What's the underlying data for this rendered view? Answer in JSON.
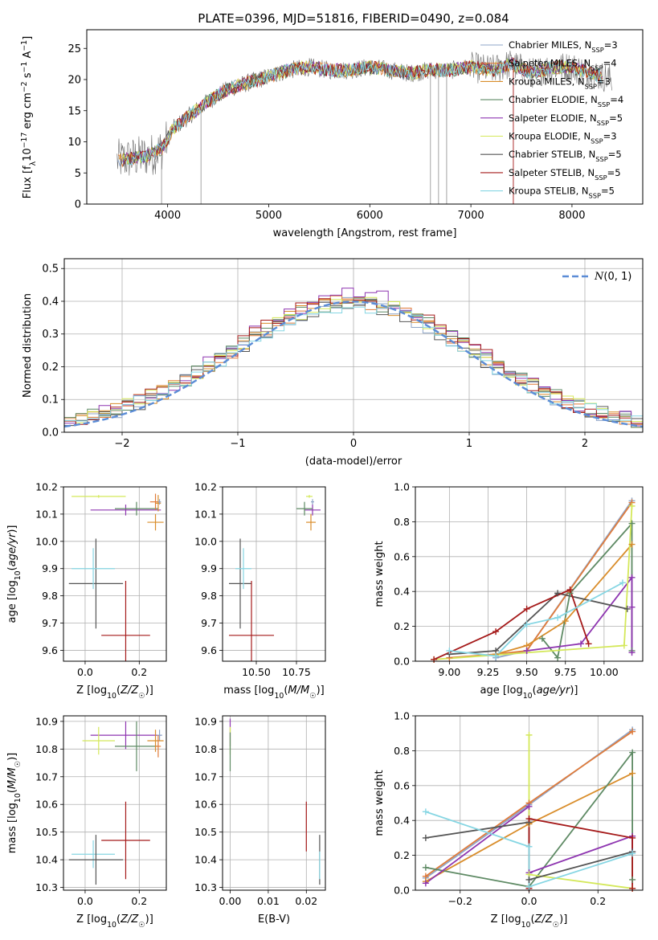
{
  "figure_title": "PLATE=0396, MJD=51816, FIBERID=0490, z=0.084",
  "colors": {
    "Chabrier MILES": "#8fa5c8",
    "Salpeter MILES": "#e07b3a",
    "Kroupa MILES": "#d98d2b",
    "Chabrier ELODIE": "#5e8a64",
    "Salpeter ELODIE": "#8e35b0",
    "Kroupa ELODIE": "#d4e85a",
    "Chabrier STELIB": "#555555",
    "Salpeter STELIB": "#a51a1a",
    "Kroupa STELIB": "#86d6e3",
    "gauss": "#5b8cd6"
  },
  "chart_data": [
    {
      "type": "line",
      "title": "PLATE=0396, MJD=51816, FIBERID=0490, z=0.084",
      "xlabel": "wavelength [Angstrom, rest frame]",
      "ylabel": "Flux [f_λ10⁻¹⁷ erg cm⁻² s⁻¹ A⁻¹]",
      "xlim": [
        3200,
        8700
      ],
      "ylim": [
        0,
        28
      ],
      "xticks": [
        4000,
        5000,
        6000,
        7000,
        8000
      ],
      "yticks": [
        0,
        5,
        10,
        15,
        20,
        25
      ],
      "grid": false,
      "legend_position": "top-right",
      "series_names": [
        "Chabrier MILES",
        "Salpeter MILES",
        "Kroupa MILES",
        "Chabrier ELODIE",
        "Salpeter ELODIE",
        "Kroupa ELODIE",
        "Chabrier STELIB",
        "Salpeter STELIB",
        "Kroupa STELIB"
      ],
      "legend": [
        {
          "name": "Chabrier MILES",
          "nssp": "3"
        },
        {
          "name": "Salpeter MILES",
          "nssp": "4"
        },
        {
          "name": "Kroupa MILES",
          "nssp": "3"
        },
        {
          "name": "Chabrier ELODIE",
          "nssp": "4"
        },
        {
          "name": "Salpeter ELODIE",
          "nssp": "5"
        },
        {
          "name": "Kroupa ELODIE",
          "nssp": "3"
        },
        {
          "name": "Chabrier STELIB",
          "nssp": "5"
        },
        {
          "name": "Salpeter STELIB",
          "nssp": "5"
        },
        {
          "name": "Kroupa STELIB",
          "nssp": "5"
        }
      ],
      "continuum": [
        [
          3500,
          7
        ],
        [
          3700,
          7.5
        ],
        [
          3850,
          8
        ],
        [
          3950,
          9
        ],
        [
          4050,
          12
        ],
        [
          4200,
          14
        ],
        [
          4400,
          16.5
        ],
        [
          4600,
          18.5
        ],
        [
          4800,
          19.5
        ],
        [
          5000,
          20.5
        ],
        [
          5200,
          21.5
        ],
        [
          5400,
          22
        ],
        [
          5600,
          21.5
        ],
        [
          5800,
          21.5
        ],
        [
          6000,
          22
        ],
        [
          6200,
          21.5
        ],
        [
          6400,
          21
        ],
        [
          6600,
          21.5
        ],
        [
          6800,
          21.5
        ],
        [
          7000,
          22
        ],
        [
          7200,
          21.5
        ],
        [
          7400,
          22.5
        ],
        [
          7600,
          21
        ],
        [
          7800,
          22
        ],
        [
          8000,
          22
        ],
        [
          8200,
          21
        ],
        [
          8400,
          20
        ]
      ]
    },
    {
      "type": "histogram",
      "xlabel": "(data-model)/error",
      "ylabel": "Normed distribution",
      "xlim": [
        -2.5,
        2.5
      ],
      "ylim": [
        0,
        0.53
      ],
      "xticks": [
        -2,
        -1,
        0,
        1,
        2
      ],
      "yticks": [
        0.0,
        0.1,
        0.2,
        0.3,
        0.4,
        0.5
      ],
      "grid": true,
      "legend": [
        "N(0,1)"
      ],
      "legend_position": "top-right",
      "series_names": [
        "Chabrier MILES",
        "Salpeter MILES",
        "Kroupa MILES",
        "Chabrier ELODIE",
        "Salpeter ELODIE",
        "Kroupa ELODIE",
        "Chabrier STELIB",
        "Salpeter STELIB",
        "Kroupa STELIB"
      ],
      "bin_width": 0.1,
      "approx_peak_values": [
        0.38,
        0.39,
        0.39,
        0.39,
        0.41,
        0.39,
        0.38,
        0.4,
        0.38
      ]
    },
    {
      "type": "scatter",
      "xlabel": "Z [log₁₀(Z/Z☉)]",
      "ylabel": "age  [log₁₀(age/yr)]",
      "xlim": [
        -0.08,
        0.3
      ],
      "ylim": [
        9.56,
        10.2
      ],
      "xticks": [
        0.0,
        0.2
      ],
      "yticks": [
        9.6,
        9.7,
        9.8,
        9.9,
        10.0,
        10.1,
        10.2
      ],
      "grid": true,
      "points": [
        {
          "series": "Kroupa ELODIE",
          "x": 0.05,
          "xerr": 0.1,
          "y": 10.165,
          "yerr": 0.005
        },
        {
          "series": "Salpeter ELODIE",
          "x": 0.15,
          "xerr": 0.13,
          "y": 10.115,
          "yerr": 0.02
        },
        {
          "series": "Chabrier ELODIE",
          "x": 0.19,
          "xerr": 0.08,
          "y": 10.12,
          "yerr": 0.025
        },
        {
          "series": "Salpeter MILES",
          "x": 0.26,
          "xerr": 0.02,
          "y": 10.145,
          "yerr": 0.03
        },
        {
          "series": "Kroupa MILES",
          "x": 0.27,
          "xerr": 0.01,
          "y": 10.14,
          "yerr": 0.03
        },
        {
          "series": "Chabrier MILES",
          "x": 0.275,
          "xerr": 0.005,
          "y": 10.145,
          "yerr": 0.01
        },
        {
          "series": "Kroupa MILES",
          "x": 0.26,
          "xerr": 0.03,
          "y": 10.07,
          "yerr": 0.03
        },
        {
          "series": "Chabrier STELIB",
          "x": 0.04,
          "xerr": 0.1,
          "y": 9.845,
          "yerr": 0.165
        },
        {
          "series": "Kroupa STELIB",
          "x": 0.03,
          "xerr": 0.08,
          "y": 9.9,
          "yerr": 0.075
        },
        {
          "series": "Salpeter STELIB",
          "x": 0.15,
          "xerr": 0.09,
          "y": 9.655,
          "yerr": 0.2
        }
      ]
    },
    {
      "type": "scatter",
      "xlabel": "mass [log₁₀(M/M☉)]",
      "xlim": [
        10.29,
        10.93
      ],
      "ylim": [
        9.56,
        10.2
      ],
      "xticks": [
        10.5,
        10.75
      ],
      "yticks": [
        9.6,
        9.7,
        9.8,
        9.9,
        10.0,
        10.1,
        10.2
      ],
      "grid": true,
      "points": [
        {
          "series": "Kroupa ELODIE",
          "x": 10.83,
          "xerr": 0.02,
          "y": 10.165,
          "yerr": 0.005
        },
        {
          "series": "Salpeter ELODIE",
          "x": 10.85,
          "xerr": 0.05,
          "y": 10.115,
          "yerr": 0.02
        },
        {
          "series": "Chabrier ELODIE",
          "x": 10.8,
          "xerr": 0.05,
          "y": 10.12,
          "yerr": 0.025
        },
        {
          "series": "Chabrier MILES",
          "x": 10.85,
          "xerr": 0.01,
          "y": 10.145,
          "yerr": 0.01
        },
        {
          "series": "Kroupa MILES",
          "x": 10.84,
          "xerr": 0.03,
          "y": 10.07,
          "yerr": 0.03
        },
        {
          "series": "Chabrier STELIB",
          "x": 10.4,
          "xerr": 0.07,
          "y": 9.845,
          "yerr": 0.165
        },
        {
          "series": "Kroupa STELIB",
          "x": 10.42,
          "xerr": 0.05,
          "y": 9.9,
          "yerr": 0.075
        },
        {
          "series": "Salpeter STELIB",
          "x": 10.47,
          "xerr": 0.14,
          "y": 9.655,
          "yerr": 0.2
        }
      ]
    },
    {
      "type": "line",
      "xlabel": "age  [log₁₀(age/yr)]",
      "ylabel": "mass weight",
      "xlim": [
        8.78,
        10.25
      ],
      "ylim": [
        0,
        1
      ],
      "xticks": [
        9.0,
        9.25,
        9.5,
        9.75,
        10.0
      ],
      "yticks": [
        0.0,
        0.2,
        0.4,
        0.6,
        0.8,
        1.0
      ],
      "grid": true,
      "series": [
        {
          "name": "Chabrier MILES",
          "x": [
            9.3,
            9.5,
            10.18
          ],
          "y": [
            0.02,
            0.06,
            0.92
          ]
        },
        {
          "name": "Salpeter MILES",
          "x": [
            9.0,
            9.3,
            9.5,
            10.18
          ],
          "y": [
            0.02,
            0.04,
            0.06,
            0.91
          ]
        },
        {
          "name": "Kroupa MILES",
          "x": [
            9.3,
            9.5,
            9.75,
            10.18
          ],
          "y": [
            0.04,
            0.09,
            0.23,
            0.67
          ]
        },
        {
          "name": "Chabrier ELODIE",
          "x": [
            9.6,
            9.7,
            9.78,
            10.18,
            10.18
          ],
          "y": [
            0.13,
            0.02,
            0.39,
            0.79,
            0.06
          ]
        },
        {
          "name": "Salpeter ELODIE",
          "x": [
            9.5,
            9.85,
            10.18,
            10.18,
            10.18
          ],
          "y": [
            0.06,
            0.1,
            0.48,
            0.31,
            0.05
          ]
        },
        {
          "name": "Kroupa ELODIE",
          "x": [
            8.9,
            10.13,
            10.18
          ],
          "y": [
            0.01,
            0.09,
            0.89
          ]
        },
        {
          "name": "Chabrier STELIB",
          "x": [
            9.0,
            9.3,
            9.7,
            10.15
          ],
          "y": [
            0.04,
            0.06,
            0.39,
            0.3
          ]
        },
        {
          "name": "Salpeter STELIB",
          "x": [
            8.9,
            9.3,
            9.5,
            9.78,
            9.9
          ],
          "y": [
            0.01,
            0.17,
            0.3,
            0.41,
            0.1
          ]
        },
        {
          "name": "Kroupa STELIB",
          "x": [
            9.0,
            9.3,
            9.5,
            9.7,
            10.12
          ],
          "y": [
            0.06,
            0.03,
            0.21,
            0.25,
            0.45
          ]
        }
      ]
    },
    {
      "type": "scatter",
      "xlabel": "Z [log₁₀(Z/Z☉)]",
      "ylabel": "mass [log₁₀(M/M☉)]",
      "xlim": [
        -0.08,
        0.3
      ],
      "ylim": [
        10.29,
        10.92
      ],
      "xticks": [
        0.0,
        0.2
      ],
      "yticks": [
        10.3,
        10.4,
        10.5,
        10.6,
        10.7,
        10.8,
        10.9
      ],
      "grid": true,
      "points": [
        {
          "series": "Salpeter ELODIE",
          "x": 0.15,
          "xerr": 0.13,
          "y": 10.85,
          "yerr": 0.05
        },
        {
          "series": "Kroupa ELODIE",
          "x": 0.05,
          "xerr": 0.06,
          "y": 10.83,
          "yerr": 0.05
        },
        {
          "series": "Chabrier ELODIE",
          "x": 0.19,
          "xerr": 0.08,
          "y": 10.81,
          "yerr": 0.09
        },
        {
          "series": "Chabrier MILES",
          "x": 0.275,
          "xerr": 0.01,
          "y": 10.85,
          "yerr": 0.02
        },
        {
          "series": "Kroupa MILES",
          "x": 0.26,
          "xerr": 0.03,
          "y": 10.83,
          "yerr": 0.04
        },
        {
          "series": "Salpeter MILES",
          "x": 0.27,
          "xerr": 0.01,
          "y": 10.81,
          "yerr": 0.04
        },
        {
          "series": "Salpeter STELIB",
          "x": 0.15,
          "xerr": 0.09,
          "y": 10.47,
          "yerr": 0.14
        },
        {
          "series": "Kroupa STELIB",
          "x": 0.03,
          "xerr": 0.08,
          "y": 10.42,
          "yerr": 0.05
        },
        {
          "series": "Chabrier STELIB",
          "x": 0.04,
          "xerr": 0.1,
          "y": 10.4,
          "yerr": 0.09
        }
      ]
    },
    {
      "type": "scatter",
      "xlabel": "E(B-V)",
      "xlim": [
        -0.002,
        0.025
      ],
      "ylim": [
        10.29,
        10.92
      ],
      "xticks": [
        0.0,
        0.01,
        0.02
      ],
      "yticks": [
        10.3,
        10.4,
        10.5,
        10.6,
        10.7,
        10.8,
        10.9
      ],
      "grid": true,
      "points": [
        {
          "series": "Salpeter ELODIE",
          "x": 0.0,
          "y": 10.86,
          "yerr": 0.05
        },
        {
          "series": "Kroupa ELODIE",
          "x": 0.0,
          "y": 10.83,
          "yerr": 0.05
        },
        {
          "series": "Chabrier ELODIE",
          "x": 0.0,
          "y": 10.79,
          "yerr": 0.07
        },
        {
          "series": "Salpeter STELIB",
          "x": 0.02,
          "y": 10.52,
          "yerr": 0.09
        },
        {
          "series": "Chabrier STELIB",
          "x": 0.0235,
          "y": 10.4,
          "yerr": 0.09
        },
        {
          "series": "Kroupa STELIB",
          "x": 0.0235,
          "y": 10.38,
          "yerr": 0.05
        }
      ]
    },
    {
      "type": "line",
      "xlabel": "Z [log₁₀(Z/Z☉)]",
      "ylabel": "mass weight",
      "xlim": [
        -0.33,
        0.33
      ],
      "ylim": [
        0,
        1
      ],
      "xticks": [
        -0.2,
        0.0,
        0.2
      ],
      "yticks": [
        0.0,
        0.2,
        0.4,
        0.6,
        0.8,
        1.0
      ],
      "grid": true,
      "series": [
        {
          "name": "Chabrier MILES",
          "x": [
            -0.3,
            0.0,
            0.3
          ],
          "y": [
            0.07,
            0.49,
            0.92
          ]
        },
        {
          "name": "Salpeter MILES",
          "x": [
            -0.3,
            0.0,
            0.3
          ],
          "y": [
            0.08,
            0.5,
            0.91
          ]
        },
        {
          "name": "Kroupa MILES",
          "x": [
            -0.3,
            0.0,
            0.3
          ],
          "y": [
            0.05,
            0.38,
            0.67
          ]
        },
        {
          "name": "Chabrier ELODIE",
          "x": [
            -0.3,
            0.0,
            0.3,
            0.3
          ],
          "y": [
            0.13,
            0.02,
            0.79,
            0.06
          ]
        },
        {
          "name": "Salpeter ELODIE",
          "x": [
            -0.3,
            0.0,
            0.0,
            0.3,
            0.3
          ],
          "y": [
            0.04,
            0.48,
            0.1,
            0.31,
            0.22
          ]
        },
        {
          "name": "Kroupa ELODIE",
          "x": [
            0.0,
            0.0,
            0.3
          ],
          "y": [
            0.89,
            0.09,
            0.01
          ]
        },
        {
          "name": "Chabrier STELIB",
          "x": [
            -0.3,
            0.0,
            0.0,
            0.3
          ],
          "y": [
            0.3,
            0.39,
            0.06,
            0.22
          ]
        },
        {
          "name": "Salpeter STELIB",
          "x": [
            0.0,
            0.0,
            0.3,
            0.3
          ],
          "y": [
            0.01,
            0.41,
            0.3,
            0.01
          ]
        },
        {
          "name": "Kroupa STELIB",
          "x": [
            -0.3,
            0.0,
            0.0,
            0.3
          ],
          "y": [
            0.45,
            0.25,
            0.02,
            0.21
          ]
        }
      ]
    }
  ]
}
